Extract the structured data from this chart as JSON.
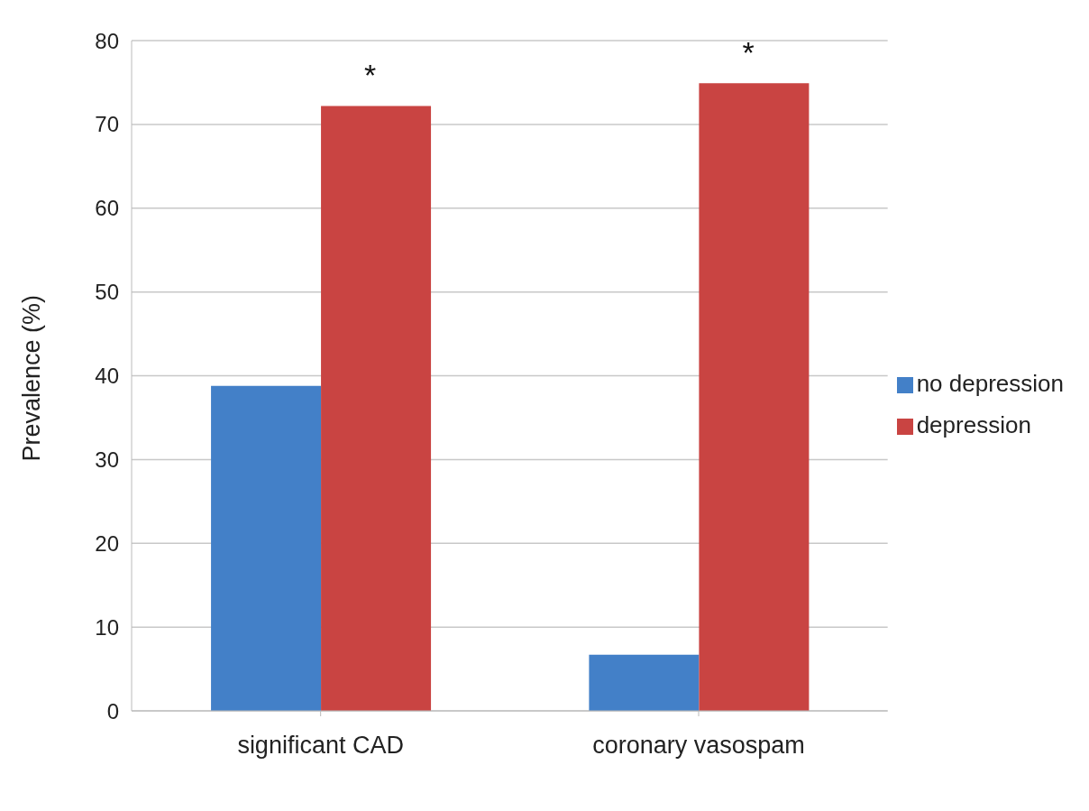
{
  "chart_data": {
    "type": "bar",
    "ylabel": "Prevalence (%)",
    "categories": [
      "significant CAD",
      "coronary vasospam"
    ],
    "series": [
      {
        "name": "no depression",
        "color": "#4380c8",
        "values": [
          38.8,
          6.7
        ]
      },
      {
        "name": "depression",
        "color": "#c94442",
        "values": [
          72.2,
          74.9
        ]
      }
    ],
    "ylim": [
      0,
      80
    ],
    "yticks": [
      0,
      10,
      20,
      30,
      40,
      50,
      60,
      70,
      80
    ],
    "grid": "y",
    "legend": "right",
    "annotations": [
      "*",
      "*"
    ]
  }
}
